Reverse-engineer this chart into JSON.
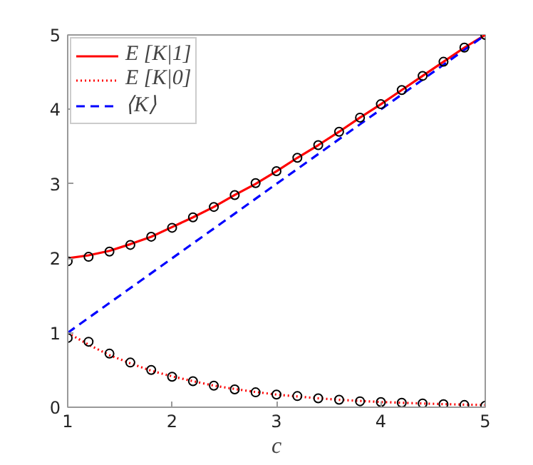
{
  "chart_data": {
    "type": "line",
    "xlabel": "c",
    "xlim": [
      1,
      5
    ],
    "ylim": [
      0,
      5
    ],
    "xticks": [
      1,
      2,
      3,
      4,
      5
    ],
    "yticks": [
      0,
      1,
      2,
      3,
      4,
      5
    ],
    "grid": false,
    "legend": "top left",
    "x": [
      1,
      1.2,
      1.4,
      1.6,
      1.8,
      2,
      2.2,
      2.4,
      2.6,
      2.8,
      3,
      3.2,
      3.4,
      3.6,
      3.8,
      4,
      4.2,
      4.4,
      4.6,
      4.8,
      5
    ],
    "series": [
      {
        "name": "E [K|1]",
        "color": "#ff0000",
        "line_style": "solid",
        "marker": "none",
        "values": [
          2.0,
          2.04,
          2.1,
          2.19,
          2.29,
          2.42,
          2.55,
          2.69,
          2.85,
          3.0,
          3.17,
          3.35,
          3.52,
          3.7,
          3.89,
          4.07,
          4.26,
          4.45,
          4.64,
          4.83,
          5.0
        ]
      },
      {
        "name": "E [K|0]",
        "color": "#ff0000",
        "line_style": "dotted",
        "marker": "none",
        "values": [
          1.0,
          0.84,
          0.7,
          0.59,
          0.49,
          0.415,
          0.35,
          0.29,
          0.245,
          0.205,
          0.17,
          0.145,
          0.12,
          0.1,
          0.085,
          0.07,
          0.06,
          0.05,
          0.042,
          0.035,
          0.03
        ]
      },
      {
        "name": "⟨K⟩",
        "color": "#0000ff",
        "line_style": "dashed",
        "marker": "none",
        "x": [
          1,
          5
        ],
        "values": [
          1,
          5
        ]
      },
      {
        "type": "scatter",
        "color": "#000000",
        "marker": "circle",
        "values": [
          1.96,
          2.02,
          2.09,
          2.18,
          2.29,
          2.41,
          2.55,
          2.69,
          2.85,
          3.01,
          3.17,
          3.35,
          3.52,
          3.7,
          3.89,
          4.07,
          4.26,
          4.45,
          4.64,
          4.83,
          5.0
        ]
      },
      {
        "type": "scatter",
        "color": "#000000",
        "marker": "circle",
        "values": [
          0.93,
          0.88,
          0.72,
          0.6,
          0.5,
          0.41,
          0.35,
          0.29,
          0.24,
          0.2,
          0.17,
          0.15,
          0.12,
          0.1,
          0.08,
          0.07,
          0.06,
          0.05,
          0.04,
          0.03,
          0.02
        ]
      }
    ]
  }
}
